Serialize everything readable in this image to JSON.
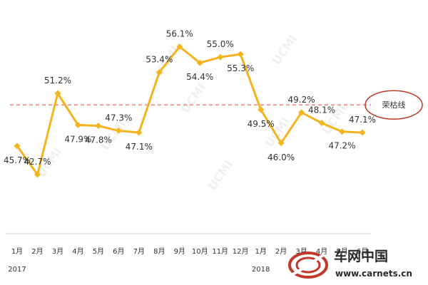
{
  "chart_data": {
    "type": "line",
    "categories": [
      "1月",
      "2月",
      "3月",
      "4月",
      "5月",
      "6月",
      "7月",
      "8月",
      "9月",
      "10月",
      "11月",
      "12月",
      "1月",
      "2月",
      "3月",
      "4月",
      "5月",
      "6月"
    ],
    "values": [
      45.7,
      42.7,
      51.2,
      47.9,
      47.8,
      47.3,
      47.1,
      53.4,
      56.1,
      54.4,
      55.0,
      55.3,
      49.5,
      46.0,
      49.2,
      48.1,
      47.2,
      47.1
    ],
    "data_labels": [
      "45.7%",
      "42.7%",
      "51.2%",
      "47.9%",
      "47.8%",
      "47.3%",
      "47.1%",
      "53.4%",
      "56.1%",
      "54.4%",
      "55.0%",
      "55.3%",
      "49.5%",
      "46.0%",
      "49.2%",
      "48.1%",
      "47.2%",
      "47.1%"
    ],
    "year_labels": [
      "2017",
      "2018"
    ],
    "reference_line": {
      "value": 50,
      "label": "荣枯线"
    },
    "ylim": [
      38,
      58
    ],
    "grid": false,
    "line_color": "#f5b41d",
    "reference_color": "#e99a9a",
    "circle_color": "#c0392b"
  },
  "watermark": "UCMI",
  "logo": {
    "brand": "车网中国",
    "site": "www.carnets.cn",
    "color": "#c0392b"
  }
}
